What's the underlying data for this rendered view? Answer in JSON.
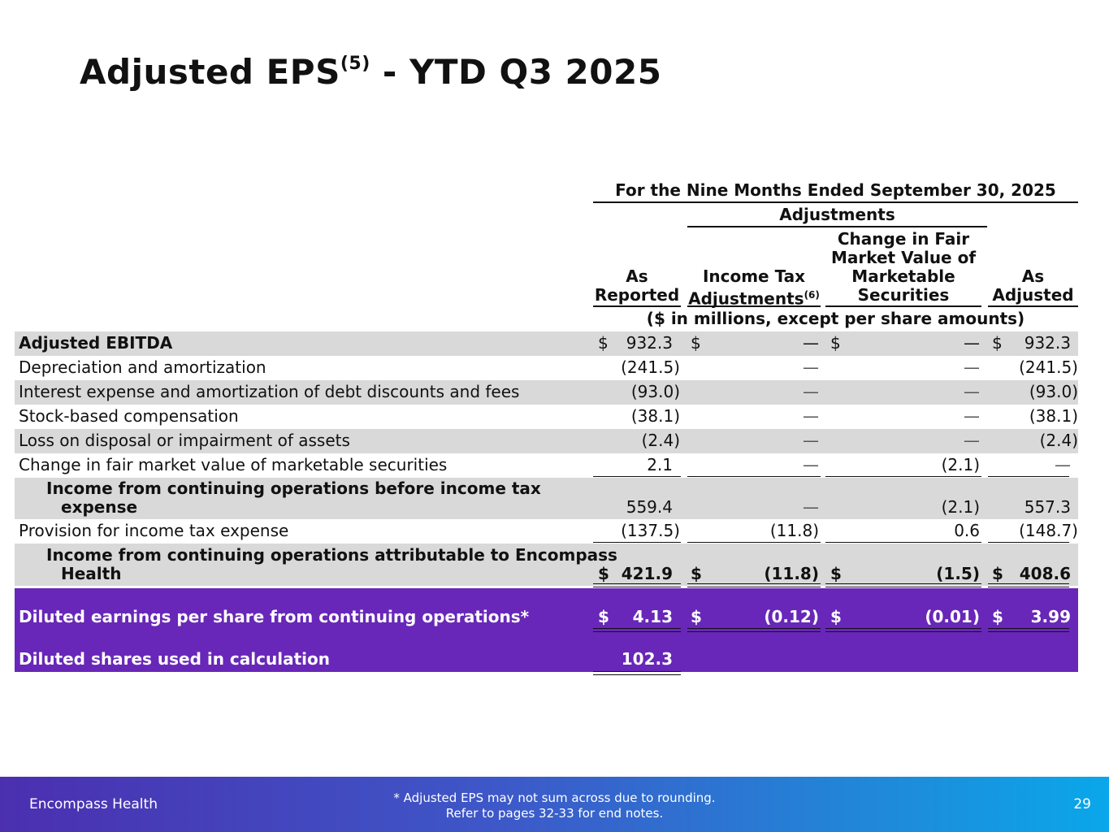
{
  "slide": {
    "title_main": "Adjusted EPS",
    "title_sup": "(5)",
    "title_rest": " - YTD Q3 2025"
  },
  "table": {
    "period_header": "For the Nine Months Ended September 30, 2025",
    "adjustments_header": "Adjustments",
    "columns": {
      "as_reported": [
        "As",
        "Reported"
      ],
      "income_tax": [
        "Income Tax",
        "Adjustments"
      ],
      "income_tax_sup": "(6)",
      "fair_value": [
        "Change in Fair",
        "Market Value of",
        "Marketable",
        "Securities"
      ],
      "as_adjusted": [
        "As",
        "Adjusted"
      ]
    },
    "units_note": "($ in millions, except per share amounts)",
    "currency_symbol": "$",
    "rows": [
      {
        "label": "Adjusted EBITDA",
        "as_reported": "932.3",
        "income_tax": "—",
        "fair_value": "—",
        "as_adjusted": "932.3"
      },
      {
        "label": "Depreciation and amortization",
        "as_reported": "(241.5)",
        "income_tax": "—",
        "fair_value": "—",
        "as_adjusted": "(241.5)"
      },
      {
        "label": "Interest expense and amortization of debt discounts and fees",
        "as_reported": "(93.0)",
        "income_tax": "—",
        "fair_value": "—",
        "as_adjusted": "(93.0)"
      },
      {
        "label": "Stock-based compensation",
        "as_reported": "(38.1)",
        "income_tax": "—",
        "fair_value": "—",
        "as_adjusted": "(38.1)"
      },
      {
        "label": "Loss on disposal or impairment of assets",
        "as_reported": "(2.4)",
        "income_tax": "—",
        "fair_value": "—",
        "as_adjusted": "(2.4)"
      },
      {
        "label": "Change in fair market value of marketable securities",
        "as_reported": "2.1",
        "income_tax": "—",
        "fair_value": "(2.1)",
        "as_adjusted": "—"
      },
      {
        "label_line1": "Income from continuing operations before income tax",
        "label_line2": "expense",
        "as_reported": "559.4",
        "income_tax": "—",
        "fair_value": "(2.1)",
        "as_adjusted": "557.3"
      },
      {
        "label": "Provision for income tax expense",
        "as_reported": "(137.5)",
        "income_tax": "(11.8)",
        "fair_value": "0.6",
        "as_adjusted": "(148.7)"
      },
      {
        "label_line1": "Income from continuing operations attributable to Encompass",
        "label_line2": "Health",
        "as_reported": "421.9",
        "income_tax": "(11.8)",
        "fair_value": "(1.5)",
        "as_adjusted": "408.6"
      },
      {
        "label": "Diluted earnings per share from continuing operations*",
        "as_reported": "4.13",
        "income_tax": "(0.12)",
        "fair_value": "(0.01)",
        "as_adjusted": "3.99"
      },
      {
        "label": "Diluted shares used in calculation",
        "as_reported": "102.3"
      }
    ]
  },
  "footer": {
    "brand": "Encompass Health",
    "note_line1": "*  Adjusted EPS may not sum across due to rounding.",
    "note_line2": "Refer to pages 32-33 for end notes.",
    "page_number": "29"
  },
  "colors": {
    "row_shade": "#d9d9d9",
    "highlight_purple": "#6827b8",
    "footer_gradient_start": "#4b2fb0",
    "footer_gradient_end": "#0aa7ea"
  }
}
